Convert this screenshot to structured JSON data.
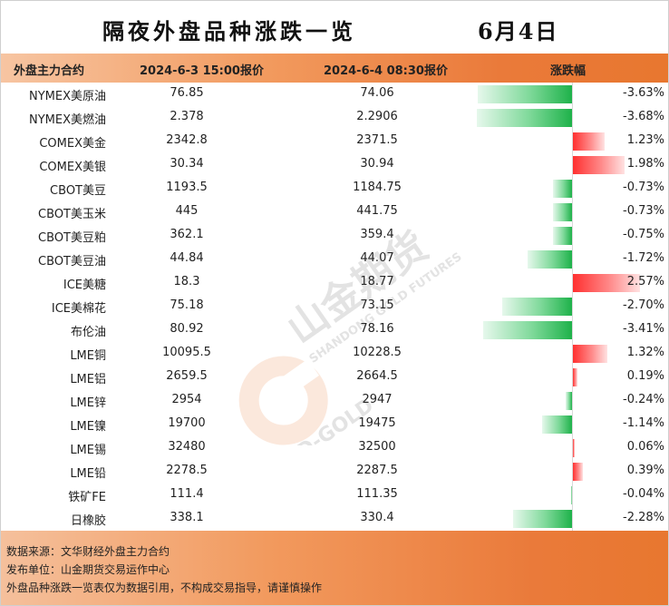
{
  "title": "隔夜外盘品种涨跌一览",
  "date": "6月4日",
  "headers": {
    "name": "外盘主力合约",
    "price1": "2024-6-3 15:00报价",
    "price2": "2024-6-4 08:30报价",
    "change": "涨跌幅"
  },
  "rows": [
    {
      "name": "NYMEX美原油",
      "p1": "76.85",
      "p2": "74.06",
      "pct": "-3.63%",
      "value": -3.63
    },
    {
      "name": "NYMEX美燃油",
      "p1": "2.378",
      "p2": "2.2906",
      "pct": "-3.68%",
      "value": -3.68
    },
    {
      "name": "COMEX美金",
      "p1": "2342.8",
      "p2": "2371.5",
      "pct": "1.23%",
      "value": 1.23
    },
    {
      "name": "COMEX美银",
      "p1": "30.34",
      "p2": "30.94",
      "pct": "1.98%",
      "value": 1.98
    },
    {
      "name": "CBOT美豆",
      "p1": "1193.5",
      "p2": "1184.75",
      "pct": "-0.73%",
      "value": -0.73
    },
    {
      "name": "CBOT美玉米",
      "p1": "445",
      "p2": "441.75",
      "pct": "-0.73%",
      "value": -0.73
    },
    {
      "name": "CBOT美豆粕",
      "p1": "362.1",
      "p2": "359.4",
      "pct": "-0.75%",
      "value": -0.75
    },
    {
      "name": "CBOT美豆油",
      "p1": "44.84",
      "p2": "44.07",
      "pct": "-1.72%",
      "value": -1.72
    },
    {
      "name": "ICE美糖",
      "p1": "18.3",
      "p2": "18.77",
      "pct": "2.57%",
      "value": 2.57
    },
    {
      "name": "ICE美棉花",
      "p1": "75.18",
      "p2": "73.15",
      "pct": "-2.70%",
      "value": -2.7
    },
    {
      "name": "布伦油",
      "p1": "80.92",
      "p2": "78.16",
      "pct": "-3.41%",
      "value": -3.41
    },
    {
      "name": "LME铜",
      "p1": "10095.5",
      "p2": "10228.5",
      "pct": "1.32%",
      "value": 1.32
    },
    {
      "name": "LME铝",
      "p1": "2659.5",
      "p2": "2664.5",
      "pct": "0.19%",
      "value": 0.19
    },
    {
      "name": "LME锌",
      "p1": "2954",
      "p2": "2947",
      "pct": "-0.24%",
      "value": -0.24
    },
    {
      "name": "LME镍",
      "p1": "19700",
      "p2": "19475",
      "pct": "-1.14%",
      "value": -1.14
    },
    {
      "name": "LME锡",
      "p1": "32480",
      "p2": "32500",
      "pct": "0.06%",
      "value": 0.06
    },
    {
      "name": "LME铅",
      "p1": "2278.5",
      "p2": "2287.5",
      "pct": "0.39%",
      "value": 0.39
    },
    {
      "name": "铁矿FE",
      "p1": "111.4",
      "p2": "111.35",
      "pct": "-0.04%",
      "value": -0.04
    },
    {
      "name": "日橡胶",
      "p1": "338.1",
      "p2": "330.4",
      "pct": "-2.28%",
      "value": -2.28
    }
  ],
  "footer": {
    "source": "数据来源：文华财经外盘主力合约",
    "publisher": "发布单位：山金期货交易运作中心",
    "disclaimer": "外盘品种涨跌一览表仅为数据引用，不构成交易指导，请谨慎操作"
  },
  "watermark": {
    "brand": "山金期货",
    "en": "SHANDONG GOLD FUTURES",
    "logo": "SD-GOLD"
  },
  "colors": {
    "negative": "#1eb24a",
    "positive": "#ff3030",
    "accent": "#e8772f"
  }
}
